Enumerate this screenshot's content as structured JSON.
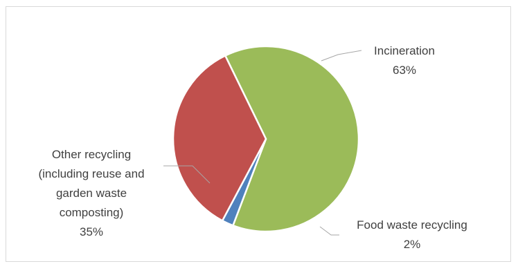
{
  "chart_data": {
    "type": "pie",
    "slices": [
      {
        "label_lines": [
          "Incineration"
        ],
        "percent_label": "63%",
        "value": 63,
        "color": "#9bbb59"
      },
      {
        "label_lines": [
          "Food waste recycling"
        ],
        "percent_label": "2%",
        "value": 2,
        "color": "#4f81bd"
      },
      {
        "label_lines": [
          "Other recycling",
          "(including reuse and",
          "garden waste",
          "composting)"
        ],
        "percent_label": "35%",
        "value": 35,
        "color": "#c0504d"
      }
    ],
    "legend": "none",
    "data_labels": "outside-with-leader-lines"
  }
}
